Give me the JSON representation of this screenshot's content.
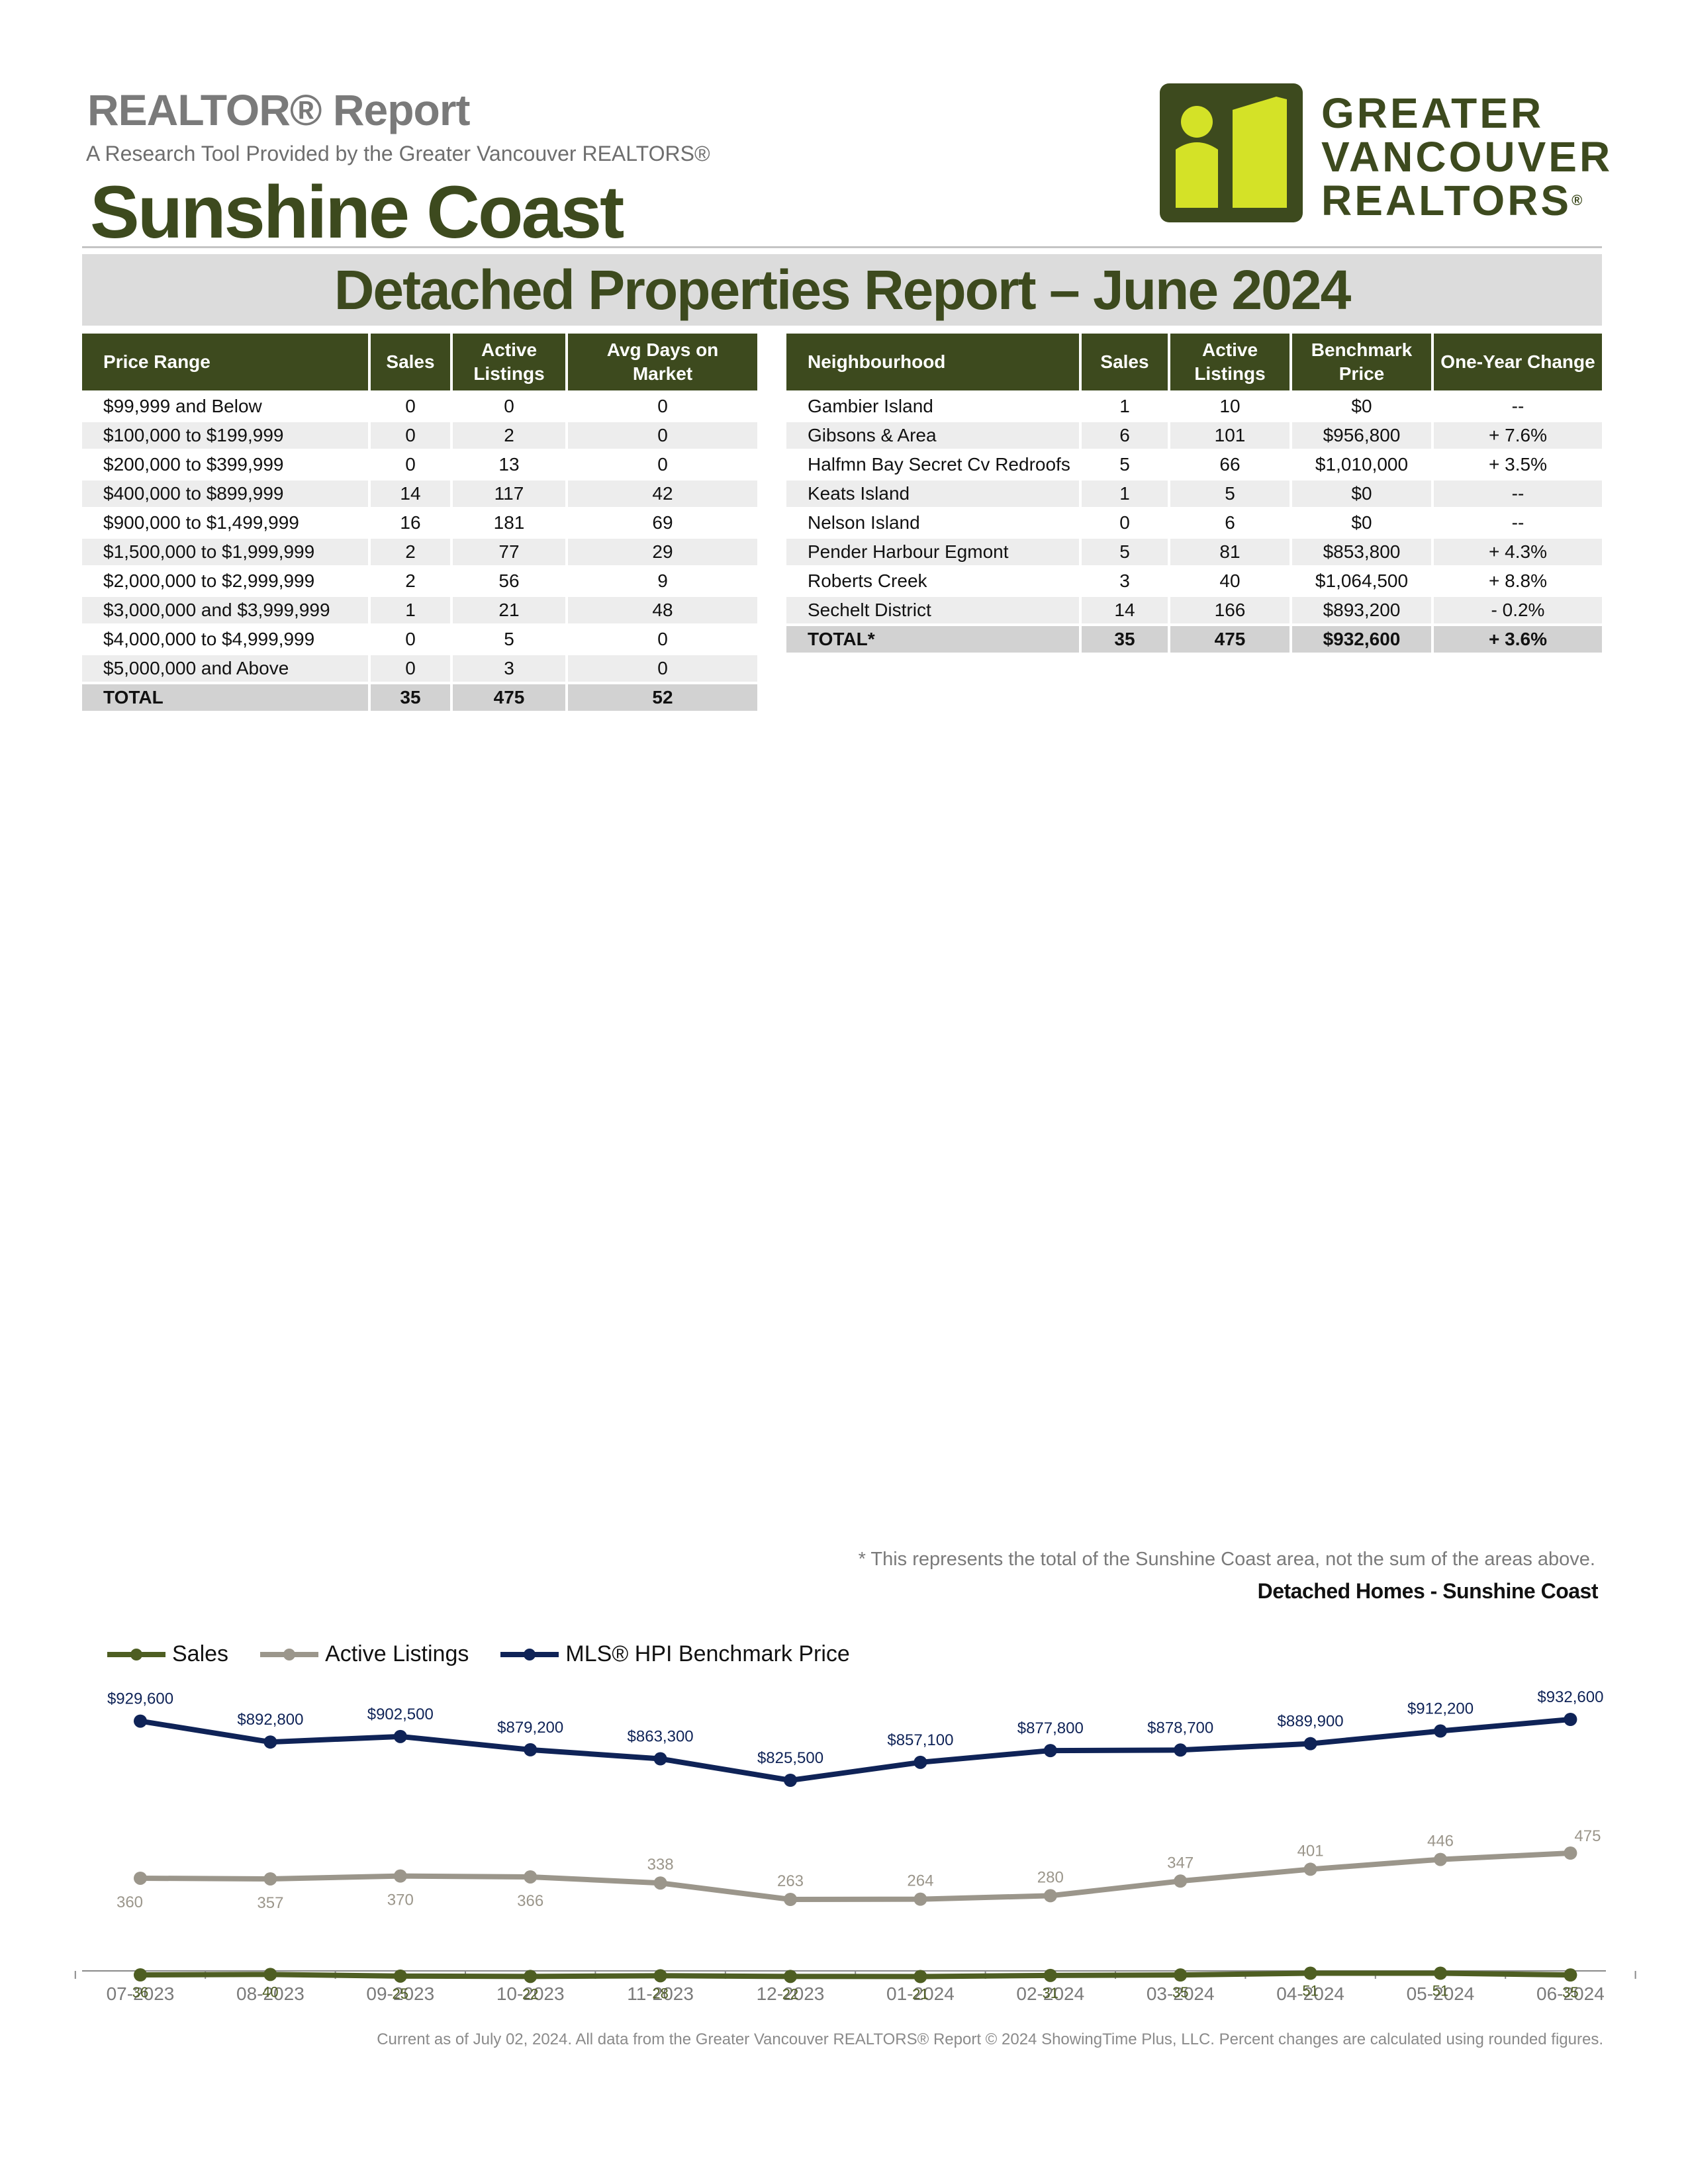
{
  "header": {
    "report_title": "REALTOR® Report",
    "subtitle": "A Research Tool Provided by the Greater Vancouver REALTORS®",
    "area_name": "Sunshine Coast",
    "banner_title": "Detached Properties Report – June 2024"
  },
  "logo": {
    "line1": "GREATER",
    "line2": "VANCOUVER",
    "line3": "REALTORS",
    "mark_color": "#3d4a1e",
    "accent_color": "#d4e227"
  },
  "price_table": {
    "headers": [
      "Price Range",
      "Sales",
      "Active Listings",
      "Avg Days on Market"
    ],
    "rows": [
      [
        "$99,999 and Below",
        "0",
        "0",
        "0"
      ],
      [
        "$100,000 to $199,999",
        "0",
        "2",
        "0"
      ],
      [
        "$200,000 to $399,999",
        "0",
        "13",
        "0"
      ],
      [
        "$400,000 to $899,999",
        "14",
        "117",
        "42"
      ],
      [
        "$900,000 to $1,499,999",
        "16",
        "181",
        "69"
      ],
      [
        "$1,500,000 to $1,999,999",
        "2",
        "77",
        "29"
      ],
      [
        "$2,000,000 to $2,999,999",
        "2",
        "56",
        "9"
      ],
      [
        "$3,000,000 and $3,999,999",
        "1",
        "21",
        "48"
      ],
      [
        "$4,000,000 to $4,999,999",
        "0",
        "5",
        "0"
      ],
      [
        "$5,000,000 and Above",
        "0",
        "3",
        "0"
      ]
    ],
    "total": [
      "TOTAL",
      "35",
      "475",
      "52"
    ]
  },
  "neighbourhood_table": {
    "headers": [
      "Neighbourhood",
      "Sales",
      "Active Listings",
      "Benchmark Price",
      "One-Year Change"
    ],
    "rows": [
      [
        "Gambier Island",
        "1",
        "10",
        "$0",
        "--"
      ],
      [
        "Gibsons & Area",
        "6",
        "101",
        "$956,800",
        "+ 7.6%"
      ],
      [
        "Halfmn Bay Secret Cv Redroofs",
        "5",
        "66",
        "$1,010,000",
        "+ 3.5%"
      ],
      [
        "Keats Island",
        "1",
        "5",
        "$0",
        "--"
      ],
      [
        "Nelson Island",
        "0",
        "6",
        "$0",
        "--"
      ],
      [
        "Pender Harbour Egmont",
        "5",
        "81",
        "$853,800",
        "+ 4.3%"
      ],
      [
        "Roberts Creek",
        "3",
        "40",
        "$1,064,500",
        "+ 8.8%"
      ],
      [
        "Sechelt District",
        "14",
        "166",
        "$893,200",
        "- 0.2%"
      ]
    ],
    "total": [
      "TOTAL*",
      "35",
      "475",
      "$932,600",
      "+ 3.6%"
    ]
  },
  "footnote": "* This represents the total of the Sunshine Coast area, not the sum of the areas above.",
  "chart_data": {
    "type": "line",
    "title": "Detached Homes - Sunshine Coast",
    "x": [
      "07-2023",
      "08-2023",
      "09-2023",
      "10-2023",
      "11-2023",
      "12-2023",
      "01-2024",
      "02-2024",
      "03-2024",
      "04-2024",
      "05-2024",
      "06-2024"
    ],
    "series": [
      {
        "name": "Sales",
        "color": "#4e5e22",
        "values": [
          36,
          40,
          25,
          22,
          28,
          22,
          21,
          31,
          35,
          51,
          51,
          35
        ],
        "labels": [
          "36",
          "40",
          "25",
          "22",
          "28",
          "22",
          "21",
          "31",
          "35",
          "51",
          "51",
          "35"
        ]
      },
      {
        "name": "Active Listings",
        "color": "#9b968b",
        "values": [
          360,
          357,
          370,
          366,
          338,
          263,
          264,
          280,
          347,
          401,
          446,
          475
        ],
        "labels": [
          "360",
          "357",
          "370",
          "366",
          "338",
          "263",
          "264",
          "280",
          "347",
          "401",
          "446",
          "475"
        ]
      },
      {
        "name": "MLS® HPI Benchmark Price",
        "color": "#0f2357",
        "values": [
          929600,
          892800,
          902500,
          879200,
          863300,
          825500,
          857100,
          877800,
          878700,
          889900,
          912200,
          932600
        ],
        "labels": [
          "$929,600",
          "$892,800",
          "$902,500",
          "$879,200",
          "$863,300",
          "$825,500",
          "$857,100",
          "$877,800",
          "$878,700",
          "$889,900",
          "$912,200",
          "$932,600"
        ]
      }
    ],
    "legend_position": "top-left",
    "grid": false
  },
  "footer": "Current as of July 02, 2024. All data from the Greater Vancouver REALTORS® Report © 2024 ShowingTime Plus, LLC. Percent changes are calculated using rounded figures."
}
